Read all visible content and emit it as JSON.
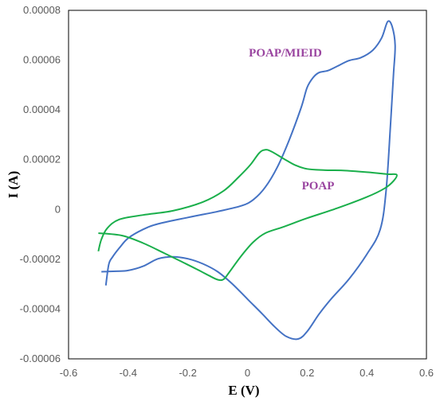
{
  "chart_data": {
    "type": "line",
    "title": "",
    "xlabel": "E (V)",
    "ylabel": "I (A)",
    "xlim": [
      -0.6,
      0.6
    ],
    "ylim": [
      -6e-05,
      8e-05
    ],
    "x_ticks": [
      "-0.6",
      "-0.4",
      "-0.2",
      "0",
      "0.2",
      "0.4",
      "0.6"
    ],
    "y_ticks": [
      "0.00008",
      "0.00006",
      "0.00004",
      "0.00002",
      "0",
      "-0.00002",
      "-0.00004",
      "-0.00006"
    ],
    "grid": false,
    "legend": "none",
    "annotations": [
      {
        "text": "POAP/MIEID",
        "color": "#9a45a0",
        "series": "POAP/MIEID"
      },
      {
        "text": "POAP",
        "color": "#9a45a0",
        "series": "POAP"
      }
    ],
    "series": [
      {
        "name": "POAP/MIEID",
        "color": "#4472c4",
        "points": [
          [
            -0.475,
            -3.05e-05
          ],
          [
            -0.465,
            -2.2e-05
          ],
          [
            -0.452,
            -1.9e-05
          ],
          [
            -0.43,
            -1.55e-05
          ],
          [
            -0.4,
            -1.15e-05
          ],
          [
            -0.35,
            -8e-06
          ],
          [
            -0.3,
            -5.8e-06
          ],
          [
            -0.2,
            -3.2e-06
          ],
          [
            -0.1,
            -8e-07
          ],
          [
            -0.02,
            1.5e-06
          ],
          [
            0.02,
            4e-06
          ],
          [
            0.06,
            9e-06
          ],
          [
            0.1,
            1.7e-05
          ],
          [
            0.14,
            2.8e-05
          ],
          [
            0.18,
            4.1e-05
          ],
          [
            0.2,
            4.9e-05
          ],
          [
            0.22,
            5.3e-05
          ],
          [
            0.24,
            5.5e-05
          ],
          [
            0.27,
            5.58e-05
          ],
          [
            0.3,
            5.75e-05
          ],
          [
            0.34,
            5.98e-05
          ],
          [
            0.38,
            6.1e-05
          ],
          [
            0.42,
            6.4e-05
          ],
          [
            0.45,
            6.9e-05
          ],
          [
            0.47,
            7.55e-05
          ],
          [
            0.485,
            7.35e-05
          ],
          [
            0.495,
            6.6e-05
          ],
          [
            0.49,
            5.5e-05
          ],
          [
            0.48,
            3.5e-05
          ],
          [
            0.465,
            8e-06
          ],
          [
            0.445,
            -8e-06
          ],
          [
            0.4,
            -1.8e-05
          ],
          [
            0.34,
            -2.8e-05
          ],
          [
            0.28,
            -3.6e-05
          ],
          [
            0.24,
            -4.2e-05
          ],
          [
            0.2,
            -4.9e-05
          ],
          [
            0.17,
            -5.2e-05
          ],
          [
            0.13,
            -5.1e-05
          ],
          [
            0.09,
            -4.7e-05
          ],
          [
            0.05,
            -4.2e-05
          ],
          [
            0.0,
            -3.6e-05
          ],
          [
            -0.05,
            -3e-05
          ],
          [
            -0.1,
            -2.5e-05
          ],
          [
            -0.15,
            -2.18e-05
          ],
          [
            -0.2,
            -1.98e-05
          ],
          [
            -0.25,
            -1.9e-05
          ],
          [
            -0.3,
            -1.98e-05
          ],
          [
            -0.35,
            -2.28e-05
          ],
          [
            -0.4,
            -2.45e-05
          ],
          [
            -0.44,
            -2.48e-05
          ],
          [
            -0.49,
            -2.5e-05
          ]
        ]
      },
      {
        "name": "POAP",
        "color": "#1aaf4b",
        "points": [
          [
            -0.5,
            -1.68e-05
          ],
          [
            -0.49,
            -1.2e-05
          ],
          [
            -0.47,
            -7.5e-06
          ],
          [
            -0.43,
            -4e-06
          ],
          [
            -0.35,
            -2.2e-06
          ],
          [
            -0.25,
            -5e-07
          ],
          [
            -0.15,
            3e-06
          ],
          [
            -0.08,
            7.5e-06
          ],
          [
            -0.03,
            1.3e-05
          ],
          [
            0.01,
            1.8e-05
          ],
          [
            0.04,
            2.28e-05
          ],
          [
            0.06,
            2.4e-05
          ],
          [
            0.08,
            2.33e-05
          ],
          [
            0.12,
            2.05e-05
          ],
          [
            0.16,
            1.78e-05
          ],
          [
            0.2,
            1.63e-05
          ],
          [
            0.26,
            1.58e-05
          ],
          [
            0.32,
            1.57e-05
          ],
          [
            0.4,
            1.5e-05
          ],
          [
            0.47,
            1.42e-05
          ],
          [
            0.5,
            1.4e-05
          ],
          [
            0.49,
            1.15e-05
          ],
          [
            0.46,
            8.5e-06
          ],
          [
            0.4,
            5e-06
          ],
          [
            0.3,
            5e-07
          ],
          [
            0.2,
            -3.5e-06
          ],
          [
            0.12,
            -7e-06
          ],
          [
            0.06,
            -9.5e-06
          ],
          [
            0.02,
            -1.3e-05
          ],
          [
            -0.02,
            -1.85e-05
          ],
          [
            -0.06,
            -2.5e-05
          ],
          [
            -0.08,
            -2.8e-05
          ],
          [
            -0.1,
            -2.82e-05
          ],
          [
            -0.13,
            -2.65e-05
          ],
          [
            -0.17,
            -2.4e-05
          ],
          [
            -0.22,
            -2.1e-05
          ],
          [
            -0.28,
            -1.75e-05
          ],
          [
            -0.35,
            -1.35e-05
          ],
          [
            -0.42,
            -1.05e-05
          ],
          [
            -0.5,
            -9.5e-06
          ]
        ]
      }
    ]
  }
}
